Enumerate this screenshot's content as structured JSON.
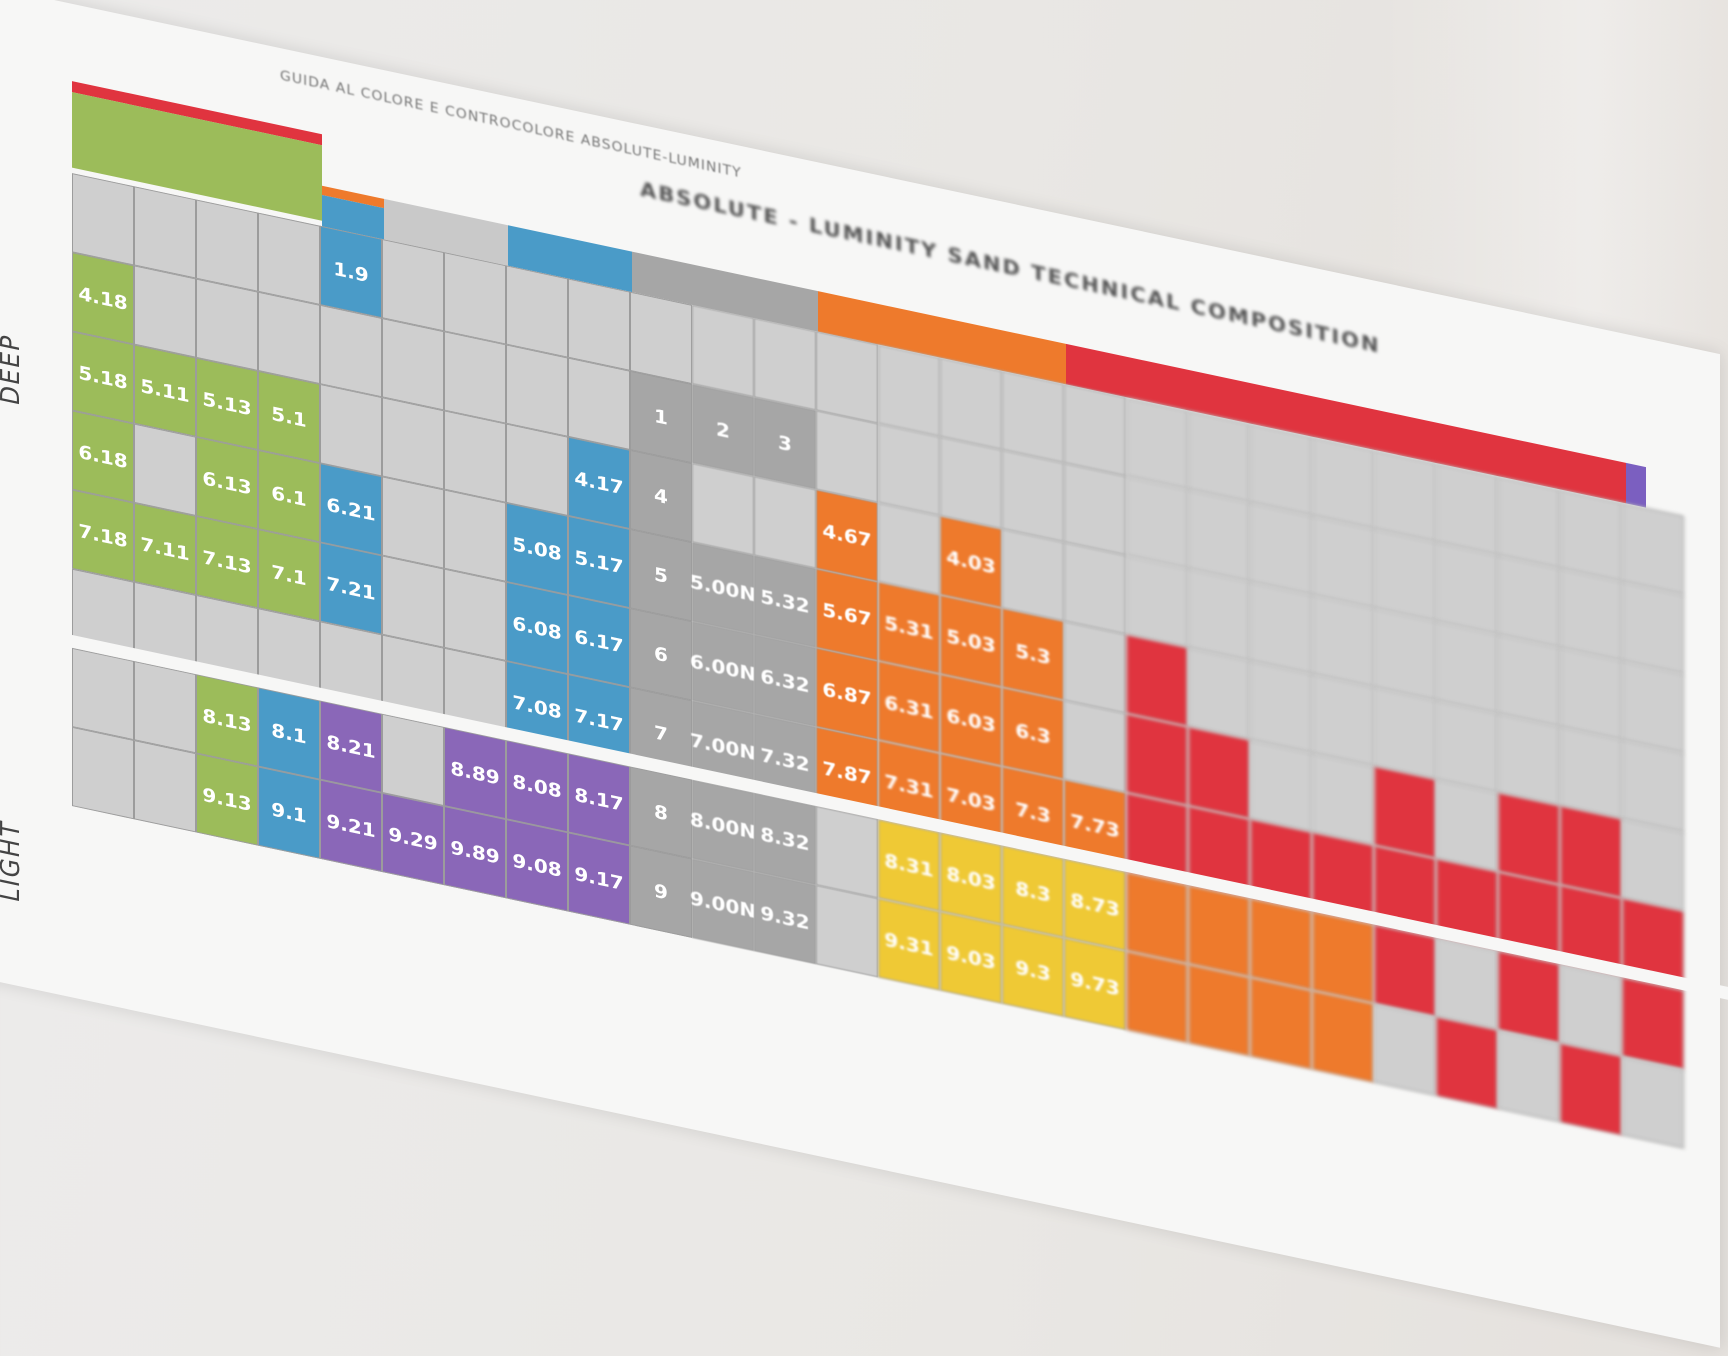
{
  "header": {
    "title": "ABSOLUTE - LUMINITY SAND TECHNICAL COMPOSITION",
    "subtitle": "GUIDA AL COLORE E CONTROCOLORE ABSOLUTE-LUMINITY"
  },
  "labels": {
    "deep": "DEEP",
    "light": "LIGHT"
  },
  "colors": {
    "green": "#9cbc5a",
    "blue": "#4a9bc8",
    "purple": "#8a67b8",
    "grey": "#a6a6a6",
    "orange": "#ee7a2c",
    "red": "#e0343f",
    "yellow": "#efc935",
    "empty": "#cfcfcf"
  },
  "grid": {
    "rows": [
      [
        [
          "e",
          ""
        ],
        [
          "e",
          ""
        ],
        [
          "e",
          ""
        ],
        [
          "e",
          ""
        ],
        [
          "b",
          "1.9"
        ],
        [
          "e",
          ""
        ],
        [
          "e",
          ""
        ],
        [
          "e",
          ""
        ],
        [
          "e",
          ""
        ],
        [
          "e",
          ""
        ],
        [
          "e",
          ""
        ],
        [
          "e",
          ""
        ],
        [
          "e",
          ""
        ],
        [
          "e",
          ""
        ],
        [
          "e",
          ""
        ],
        [
          "e",
          ""
        ],
        [
          "e",
          ""
        ],
        [
          "e",
          ""
        ],
        [
          "e",
          ""
        ],
        [
          "e",
          ""
        ],
        [
          "e",
          ""
        ],
        [
          "e",
          ""
        ],
        [
          "e",
          ""
        ],
        [
          "e",
          ""
        ],
        [
          "e",
          ""
        ],
        [
          "e",
          ""
        ]
      ],
      [
        [
          "g",
          "4.18"
        ],
        [
          "e",
          ""
        ],
        [
          "e",
          ""
        ],
        [
          "e",
          ""
        ],
        [
          "e",
          ""
        ],
        [
          "e",
          ""
        ],
        [
          "e",
          ""
        ],
        [
          "e",
          ""
        ],
        [
          "e",
          ""
        ],
        [
          "gr",
          "1"
        ],
        [
          "gr",
          "2"
        ],
        [
          "gr",
          "3"
        ],
        [
          "e",
          ""
        ],
        [
          "e",
          ""
        ],
        [
          "e",
          ""
        ],
        [
          "e",
          ""
        ],
        [
          "e",
          ""
        ],
        [
          "e",
          ""
        ],
        [
          "e",
          ""
        ],
        [
          "e",
          ""
        ],
        [
          "e",
          ""
        ],
        [
          "e",
          ""
        ],
        [
          "e",
          ""
        ],
        [
          "e",
          ""
        ],
        [
          "e",
          ""
        ],
        [
          "e",
          ""
        ]
      ],
      [
        [
          "g",
          "5.18"
        ],
        [
          "g",
          "5.11"
        ],
        [
          "g",
          "5.13"
        ],
        [
          "g",
          "5.1"
        ],
        [
          "e",
          ""
        ],
        [
          "e",
          ""
        ],
        [
          "e",
          ""
        ],
        [
          "e",
          ""
        ],
        [
          "b",
          "4.17"
        ],
        [
          "gr",
          "4"
        ],
        [
          "e",
          ""
        ],
        [
          "e",
          ""
        ],
        [
          "o",
          "4.67"
        ],
        [
          "e",
          ""
        ],
        [
          "o",
          "4.03"
        ],
        [
          "e",
          ""
        ],
        [
          "e",
          ""
        ],
        [
          "e",
          ""
        ],
        [
          "e",
          ""
        ],
        [
          "e",
          ""
        ],
        [
          "e",
          ""
        ],
        [
          "e",
          ""
        ],
        [
          "e",
          ""
        ],
        [
          "e",
          ""
        ],
        [
          "e",
          ""
        ],
        [
          "e",
          ""
        ]
      ],
      [
        [
          "g",
          "6.18"
        ],
        [
          "e",
          ""
        ],
        [
          "g",
          "6.13"
        ],
        [
          "g",
          "6.1"
        ],
        [
          "b",
          "6.21"
        ],
        [
          "e",
          ""
        ],
        [
          "e",
          ""
        ],
        [
          "b",
          "5.08"
        ],
        [
          "b",
          "5.17"
        ],
        [
          "gr",
          "5"
        ],
        [
          "gr",
          "5.00N"
        ],
        [
          "gr",
          "5.32"
        ],
        [
          "o",
          "5.67"
        ],
        [
          "o",
          "5.31"
        ],
        [
          "o",
          "5.03"
        ],
        [
          "o",
          "5.3"
        ],
        [
          "e",
          ""
        ],
        [
          "r",
          ""
        ],
        [
          "e",
          ""
        ],
        [
          "e",
          ""
        ],
        [
          "e",
          ""
        ],
        [
          "e",
          ""
        ],
        [
          "e",
          ""
        ],
        [
          "e",
          ""
        ],
        [
          "e",
          ""
        ],
        [
          "e",
          ""
        ]
      ],
      [
        [
          "g",
          "7.18"
        ],
        [
          "g",
          "7.11"
        ],
        [
          "g",
          "7.13"
        ],
        [
          "g",
          "7.1"
        ],
        [
          "b",
          "7.21"
        ],
        [
          "e",
          ""
        ],
        [
          "e",
          ""
        ],
        [
          "b",
          "6.08"
        ],
        [
          "b",
          "6.17"
        ],
        [
          "gr",
          "6"
        ],
        [
          "gr",
          "6.00N"
        ],
        [
          "gr",
          "6.32"
        ],
        [
          "o",
          "6.87"
        ],
        [
          "o",
          "6.31"
        ],
        [
          "o",
          "6.03"
        ],
        [
          "o",
          "6.3"
        ],
        [
          "e",
          ""
        ],
        [
          "r",
          ""
        ],
        [
          "r",
          ""
        ],
        [
          "e",
          ""
        ],
        [
          "e",
          ""
        ],
        [
          "r",
          ""
        ],
        [
          "e",
          ""
        ],
        [
          "r",
          ""
        ],
        [
          "r",
          ""
        ],
        [
          "e",
          ""
        ]
      ],
      [
        [
          "e",
          ""
        ],
        [
          "e",
          ""
        ],
        [
          "e",
          ""
        ],
        [
          "e",
          ""
        ],
        [
          "e",
          ""
        ],
        [
          "e",
          ""
        ],
        [
          "e",
          ""
        ],
        [
          "b",
          "7.08"
        ],
        [
          "b",
          "7.17"
        ],
        [
          "gr",
          "7"
        ],
        [
          "gr",
          "7.00N"
        ],
        [
          "gr",
          "7.32"
        ],
        [
          "o",
          "7.87"
        ],
        [
          "o",
          "7.31"
        ],
        [
          "o",
          "7.03"
        ],
        [
          "o",
          "7.3"
        ],
        [
          "o",
          "7.73"
        ],
        [
          "r",
          ""
        ],
        [
          "r",
          ""
        ],
        [
          "r",
          ""
        ],
        [
          "r",
          ""
        ],
        [
          "r",
          ""
        ],
        [
          "r",
          ""
        ],
        [
          "r",
          ""
        ],
        [
          "r",
          ""
        ],
        [
          "r",
          ""
        ]
      ],
      [
        [
          "e",
          ""
        ],
        [
          "e",
          ""
        ],
        [
          "g",
          "8.13"
        ],
        [
          "b",
          "8.1"
        ],
        [
          "p",
          "8.21"
        ],
        [
          "e",
          ""
        ],
        [
          "p",
          "8.89"
        ],
        [
          "p",
          "8.08"
        ],
        [
          "p",
          "8.17"
        ],
        [
          "gr",
          "8"
        ],
        [
          "gr",
          "8.00N"
        ],
        [
          "gr",
          "8.32"
        ],
        [
          "e",
          ""
        ],
        [
          "y",
          "8.31"
        ],
        [
          "y",
          "8.03"
        ],
        [
          "y",
          "8.3"
        ],
        [
          "y",
          "8.73"
        ],
        [
          "o",
          ""
        ],
        [
          "o",
          ""
        ],
        [
          "o",
          ""
        ],
        [
          "o",
          ""
        ],
        [
          "r",
          ""
        ],
        [
          "e",
          ""
        ],
        [
          "r",
          ""
        ],
        [
          "e",
          ""
        ],
        [
          "r",
          ""
        ]
      ],
      [
        [
          "e",
          ""
        ],
        [
          "e",
          ""
        ],
        [
          "g",
          "9.13"
        ],
        [
          "b",
          "9.1"
        ],
        [
          "p",
          "9.21"
        ],
        [
          "p",
          "9.29"
        ],
        [
          "p",
          "9.89"
        ],
        [
          "p",
          "9.08"
        ],
        [
          "p",
          "9.17"
        ],
        [
          "gr",
          "9"
        ],
        [
          "gr",
          "9.00N"
        ],
        [
          "gr",
          "9.32"
        ],
        [
          "e",
          ""
        ],
        [
          "y",
          "9.31"
        ],
        [
          "y",
          "9.03"
        ],
        [
          "y",
          "9.3"
        ],
        [
          "y",
          "9.73"
        ],
        [
          "o",
          ""
        ],
        [
          "o",
          ""
        ],
        [
          "o",
          ""
        ],
        [
          "o",
          ""
        ],
        [
          "e",
          ""
        ],
        [
          "r",
          ""
        ],
        [
          "e",
          ""
        ],
        [
          "r",
          ""
        ],
        [
          "e",
          ""
        ]
      ]
    ]
  }
}
